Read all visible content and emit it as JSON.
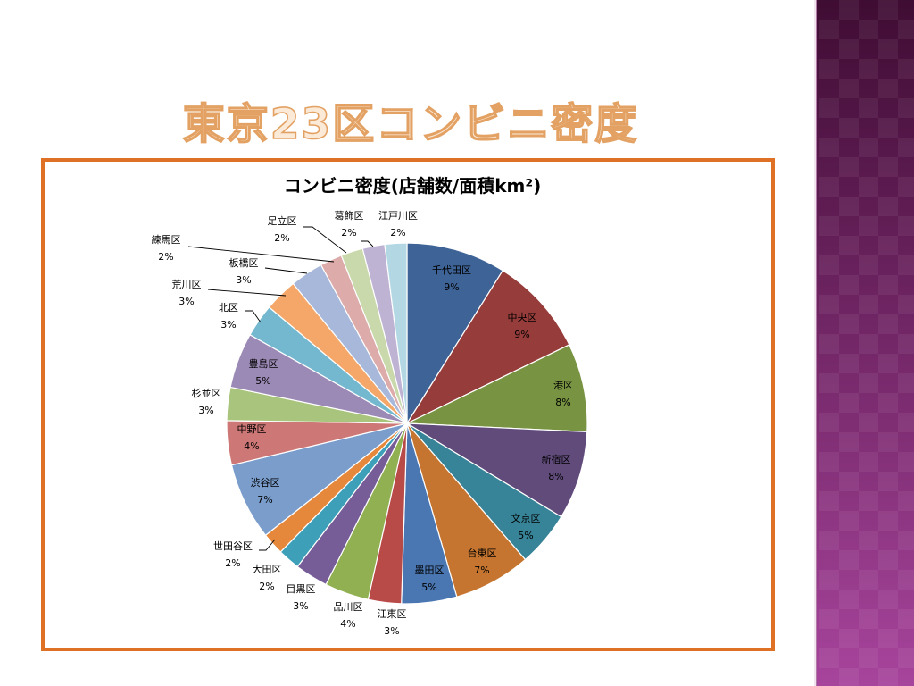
{
  "slide": {
    "title": "東京23区コンビニ密度"
  },
  "chart_data": {
    "type": "pie",
    "title": "コンビニ密度(店舗数/面積km²)",
    "start_angle_deg": 0,
    "direction": "clockwise",
    "slices": [
      {
        "label": "千代田区",
        "value": 9,
        "display": "9%",
        "color": "#3e6396"
      },
      {
        "label": "中央区",
        "value": 9,
        "display": "9%",
        "color": "#963c3a"
      },
      {
        "label": "港区",
        "value": 8,
        "display": "8%",
        "color": "#789442"
      },
      {
        "label": "新宿区",
        "value": 8,
        "display": "8%",
        "color": "#604b7b"
      },
      {
        "label": "文京区",
        "value": 5,
        "display": "5%",
        "color": "#378397"
      },
      {
        "label": "台東区",
        "value": 7,
        "display": "7%",
        "color": "#c5752f"
      },
      {
        "label": "墨田区",
        "value": 5,
        "display": "5%",
        "color": "#4a76b2"
      },
      {
        "label": "江東区",
        "value": 3,
        "display": "3%",
        "color": "#b84a48"
      },
      {
        "label": "品川区",
        "value": 4,
        "display": "4%",
        "color": "#91b051"
      },
      {
        "label": "目黒区",
        "value": 3,
        "display": "3%",
        "color": "#765d98"
      },
      {
        "label": "大田区",
        "value": 2,
        "display": "2%",
        "color": "#3d9fb8"
      },
      {
        "label": "世田谷区",
        "value": 2,
        "display": "2%",
        "color": "#e6883c"
      },
      {
        "label": "渋谷区",
        "value": 7,
        "display": "7%",
        "color": "#7a9dcc"
      },
      {
        "label": "中野区",
        "value": 4,
        "display": "4%",
        "color": "#cd7876"
      },
      {
        "label": "杉並区",
        "value": 3,
        "display": "3%",
        "color": "#a9c47c"
      },
      {
        "label": "豊島区",
        "value": 5,
        "display": "5%",
        "color": "#9c8ab6"
      },
      {
        "label": "北区",
        "value": 3,
        "display": "3%",
        "color": "#74b8cf"
      },
      {
        "label": "荒川区",
        "value": 3,
        "display": "3%",
        "color": "#f4a769"
      },
      {
        "label": "板橋区",
        "value": 3,
        "display": "3%",
        "color": "#a7b8da"
      },
      {
        "label": "練馬区",
        "value": 2,
        "display": "2%",
        "color": "#dcabaa"
      },
      {
        "label": "足立区",
        "value": 2,
        "display": "2%",
        "color": "#c9d9ab"
      },
      {
        "label": "葛飾区",
        "value": 2,
        "display": "2%",
        "color": "#bfb3d3"
      },
      {
        "label": "江戸川区",
        "value": 2,
        "display": "2%",
        "color": "#b3d8e4"
      }
    ]
  },
  "colors": {
    "frame_border": "#df7127",
    "title_fill": "#fbead8",
    "title_outline": "#e3a264",
    "side_band_top": "#3f0c33",
    "side_band_bottom": "#a7449c"
  }
}
